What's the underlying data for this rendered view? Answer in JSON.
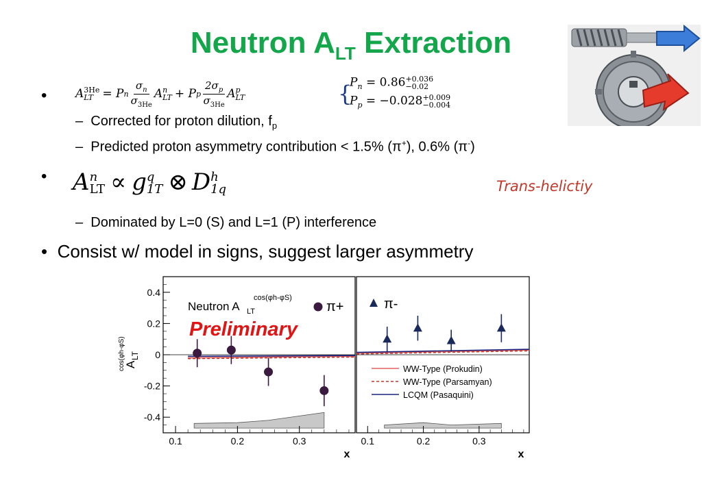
{
  "slide": {
    "title_main": "Neutron A",
    "title_sub": "LT",
    "title_rest": " Extraction",
    "bullet_char": "•",
    "dash_char": "–",
    "eq1": {
      "lhs_base": "A",
      "lhs_sup": "3He",
      "lhs_sub": "LT",
      "t1_coef": "= P",
      "t1_coef_sub": "n",
      "t1_num": "σ",
      "t1_num_sub": "n",
      "t1_den": "σ",
      "t1_den_sub": "3He",
      "t1_A": "A",
      "t1_A_sup": "n",
      "t1_A_sub": "LT",
      "t2_coef": "+ P",
      "t2_coef_sub": "p",
      "t2_num": "2σ",
      "t2_num_sub": "p",
      "t2_den": "σ",
      "t2_den_sub": "3He",
      "t2_A": "A",
      "t2_A_sup": "p",
      "t2_A_sub": "LT"
    },
    "pn": {
      "label": "P",
      "label_sub": "n",
      "value": "= 0.86",
      "err_up": "+0.036",
      "err_down": "−0.02"
    },
    "pp": {
      "label": "P",
      "label_sub": "p",
      "value": "= −0.028",
      "err_up": "+0.009",
      "err_down": "−0.004"
    },
    "sub1": {
      "text": "Corrected for proton dilution, f",
      "sub": "p"
    },
    "sub2": {
      "text_a": "Predicted proton asymmetry contribution < 1.5% (π",
      "sup_a": "+",
      "text_b": "), 0.6% (π",
      "sup_b": "-",
      "text_c": ")"
    },
    "eq2": {
      "A": "A",
      "A_sup": "n",
      "A_sub": "LT",
      "prop": "∝",
      "g": "g",
      "g_sup": "q",
      "g_sub": "1T",
      "otimes": "⊗",
      "D": "D",
      "D_sup": "h",
      "D_sub": "1q"
    },
    "trans_label": "Trans-helictiy",
    "sub3": "Dominated by L=0 (S) and L=1 (P) interference",
    "bullet3": "Consist w/ model in signs, suggest larger asymmetry"
  },
  "chart_data": [
    {
      "type": "scatter",
      "panel": "left",
      "legend_title": "Neutron A",
      "legend_title_sub": "LT",
      "legend_title_sup": "cos(φh-φS)",
      "preliminary": "Preliminary",
      "ylabel": "A",
      "ylabel_sub": "LT",
      "ylabel_sup": "cos(φh-φS)",
      "xlabel": "x",
      "xlim": [
        0.08,
        0.39
      ],
      "ylim": [
        -0.5,
        0.5
      ],
      "x_ticks": [
        0.1,
        0.2,
        0.3
      ],
      "x_tick_labels": [
        "0.1",
        "0.2",
        "0.3"
      ],
      "y_ticks": [
        0.4,
        0.2,
        0,
        -0.2,
        -0.4
      ],
      "y_tick_labels": [
        "0.4",
        "0.2",
        "0",
        "-0.2",
        "-0.4"
      ],
      "series": [
        {
          "name": "π+",
          "marker": "circle",
          "color": "#3b1a3f",
          "x": [
            0.135,
            0.19,
            0.25,
            0.34
          ],
          "y": [
            0.01,
            0.03,
            -0.11,
            -0.23
          ],
          "err": [
            0.09,
            0.09,
            0.09,
            0.1
          ]
        }
      ],
      "systematic_band": {
        "x": [
          0.13,
          0.2,
          0.25,
          0.34
        ],
        "y": [
          0.03,
          0.035,
          0.05,
          0.1
        ],
        "base": -0.47
      },
      "models": [
        {
          "name": "WW-Type (Prokudin)",
          "style": "solid",
          "color": "#e06060",
          "x": [
            0.12,
            0.39
          ],
          "y": [
            -0.02,
            -0.01
          ]
        },
        {
          "name": "WW-Type (Parsamyan)",
          "style": "dashed",
          "color": "#c0392b",
          "x": [
            0.12,
            0.39
          ],
          "y": [
            -0.025,
            -0.015
          ]
        },
        {
          "name": "LCQM (Pasaquini)",
          "style": "solid",
          "color": "#1a237e",
          "x": [
            0.12,
            0.39
          ],
          "y": [
            -0.01,
            -0.005
          ]
        }
      ]
    },
    {
      "type": "scatter",
      "panel": "right",
      "xlabel": "x",
      "xlim": [
        0.08,
        0.39
      ],
      "ylim": [
        -0.5,
        0.5
      ],
      "x_ticks": [
        0.1,
        0.2,
        0.3
      ],
      "x_tick_labels": [
        "0.1",
        "0.2",
        "0.3"
      ],
      "series": [
        {
          "name": "π-",
          "marker": "triangle",
          "color": "#1a2a5a",
          "x": [
            0.135,
            0.19,
            0.25,
            0.34
          ],
          "y": [
            0.1,
            0.17,
            0.09,
            0.17
          ],
          "err": [
            0.08,
            0.08,
            0.07,
            0.09
          ]
        }
      ],
      "systematic_band": {
        "x": [
          0.13,
          0.2,
          0.25,
          0.34
        ],
        "y": [
          0.02,
          0.035,
          0.02,
          0.03
        ],
        "base": -0.47
      },
      "legend": [
        {
          "label": "WW-Type (Prokudin)",
          "style": "solid",
          "color": "#e06060"
        },
        {
          "label": "WW-Type (Parsamyan)",
          "style": "dashed",
          "color": "#c0392b"
        },
        {
          "label": "LCQM (Pasaquini)",
          "style": "solid",
          "color": "#1a237e"
        }
      ],
      "models": [
        {
          "name": "WW-Type (Prokudin)",
          "style": "solid",
          "color": "#e06060",
          "x": [
            0.08,
            0.39
          ],
          "y": [
            0.01,
            0.03
          ]
        },
        {
          "name": "WW-Type (Parsamyan)",
          "style": "dashed",
          "color": "#c0392b",
          "x": [
            0.08,
            0.39
          ],
          "y": [
            0.005,
            0.025
          ]
        },
        {
          "name": "LCQM (Pasaquini)",
          "style": "solid",
          "color": "#1a237e",
          "x": [
            0.08,
            0.39
          ],
          "y": [
            0.015,
            0.035
          ]
        }
      ]
    }
  ]
}
